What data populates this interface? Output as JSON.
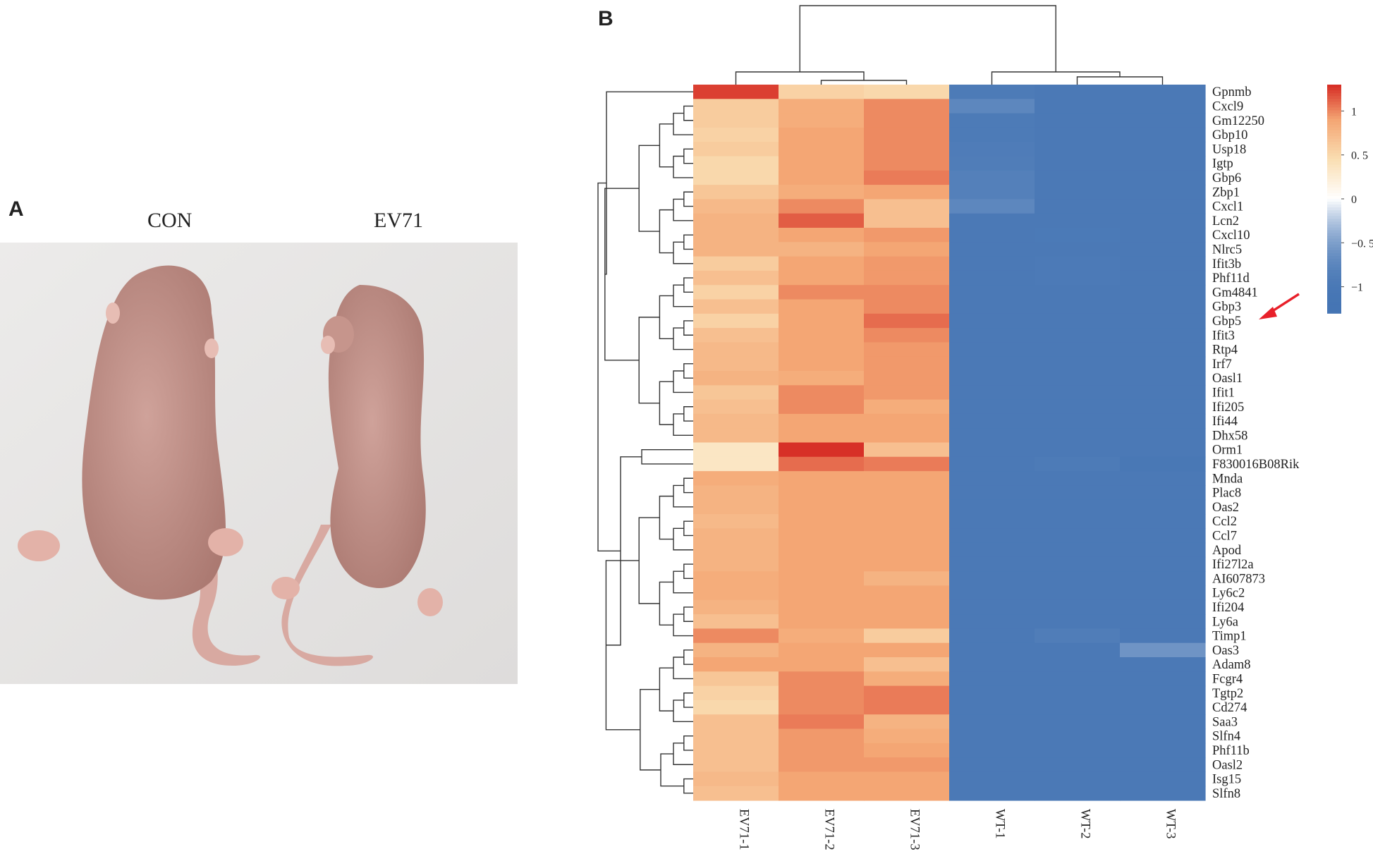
{
  "panels": {
    "a_letter": "A",
    "b_letter": "B"
  },
  "photo": {
    "labels": [
      "CON",
      "EV71"
    ]
  },
  "chart_data": {
    "type": "heatmap",
    "columns": [
      "EV71-1",
      "EV71-2",
      "EV71-3",
      "WT-1",
      "WT-2",
      "WT-3"
    ],
    "rows": [
      "Gpnmb",
      "Cxcl9",
      "Gm12250",
      "Gbp10",
      "Usp18",
      "Igtp",
      "Gbp6",
      "Zbp1",
      "Cxcl1",
      "Lcn2",
      "Cxcl10",
      "Nlrc5",
      "Ifit3b",
      "Phf11d",
      "Gm4841",
      "Gbp3",
      "Gbp5",
      "Ifit3",
      "Rtp4",
      "Irf7",
      "Oasl1",
      "Ifit1",
      "Ifi205",
      "Ifi44",
      "Dhx58",
      "Orm1",
      "F830016B08Rik",
      "Mnda",
      "Plac8",
      "Oas2",
      "Ccl2",
      "Ccl7",
      "Apod",
      "Ifi27l2a",
      "AI607873",
      "Ly6c2",
      "Ifi204",
      "Ly6a",
      "Timp1",
      "Oas3",
      "Adam8",
      "Fcgr4",
      "Tgtp2",
      "Cd274",
      "Saa3",
      "Slfn4",
      "Phf11b",
      "Oasl2",
      "Isg15",
      "Slfn8"
    ],
    "values": [
      [
        1.25,
        0.55,
        0.5,
        -0.95,
        -1.0,
        -1.0
      ],
      [
        0.6,
        0.85,
        1.0,
        -0.75,
        -1.0,
        -1.0
      ],
      [
        0.6,
        0.85,
        1.0,
        -0.95,
        -1.0,
        -1.0
      ],
      [
        0.55,
        0.9,
        1.0,
        -0.95,
        -1.0,
        -1.0
      ],
      [
        0.6,
        0.9,
        1.0,
        -0.92,
        -1.0,
        -1.0
      ],
      [
        0.5,
        0.9,
        1.0,
        -0.9,
        -1.0,
        -1.0
      ],
      [
        0.5,
        0.9,
        1.05,
        -0.85,
        -1.0,
        -1.0
      ],
      [
        0.65,
        0.85,
        0.9,
        -0.85,
        -1.0,
        -1.0
      ],
      [
        0.75,
        1.0,
        0.7,
        -0.75,
        -1.0,
        -1.0
      ],
      [
        0.8,
        1.15,
        0.7,
        -1.0,
        -1.0,
        -1.0
      ],
      [
        0.8,
        0.9,
        0.95,
        -1.0,
        -0.98,
        -1.0
      ],
      [
        0.8,
        0.8,
        0.9,
        -1.0,
        -1.0,
        -1.0
      ],
      [
        0.6,
        0.9,
        0.95,
        -1.0,
        -0.97,
        -1.0
      ],
      [
        0.7,
        0.9,
        0.95,
        -1.0,
        -0.97,
        -1.0
      ],
      [
        0.55,
        1.0,
        1.0,
        -1.0,
        -1.0,
        -1.0
      ],
      [
        0.7,
        0.9,
        1.0,
        -1.0,
        -1.0,
        -1.0
      ],
      [
        0.55,
        0.9,
        1.1,
        -1.0,
        -1.0,
        -1.0
      ],
      [
        0.7,
        0.9,
        1.0,
        -1.0,
        -1.0,
        -1.0
      ],
      [
        0.75,
        0.9,
        0.95,
        -1.0,
        -1.0,
        -1.0
      ],
      [
        0.75,
        0.9,
        0.95,
        -1.0,
        -1.0,
        -1.0
      ],
      [
        0.8,
        0.85,
        0.95,
        -1.0,
        -1.0,
        -1.0
      ],
      [
        0.65,
        1.0,
        0.95,
        -1.0,
        -1.0,
        -1.0
      ],
      [
        0.7,
        1.0,
        0.85,
        -1.0,
        -1.0,
        -1.0
      ],
      [
        0.75,
        0.9,
        0.9,
        -1.0,
        -1.0,
        -1.0
      ],
      [
        0.75,
        0.9,
        0.9,
        -1.0,
        -1.0,
        -1.0
      ],
      [
        0.35,
        1.4,
        0.7,
        -1.0,
        -1.0,
        -1.0
      ],
      [
        0.35,
        1.1,
        1.05,
        -1.0,
        -0.95,
        -1.05
      ],
      [
        0.85,
        0.9,
        0.9,
        -1.0,
        -1.0,
        -1.0
      ],
      [
        0.8,
        0.9,
        0.9,
        -1.0,
        -1.0,
        -1.0
      ],
      [
        0.8,
        0.9,
        0.9,
        -1.0,
        -1.0,
        -1.0
      ],
      [
        0.75,
        0.9,
        0.9,
        -1.0,
        -1.0,
        -1.0
      ],
      [
        0.8,
        0.9,
        0.9,
        -1.0,
        -1.0,
        -1.0
      ],
      [
        0.8,
        0.9,
        0.9,
        -1.0,
        -1.0,
        -1.0
      ],
      [
        0.8,
        0.9,
        0.9,
        -1.0,
        -1.0,
        -1.0
      ],
      [
        0.85,
        0.9,
        0.8,
        -1.0,
        -1.0,
        -1.0
      ],
      [
        0.85,
        0.9,
        0.9,
        -1.0,
        -1.0,
        -1.0
      ],
      [
        0.8,
        0.9,
        0.9,
        -1.0,
        -1.0,
        -1.0
      ],
      [
        0.7,
        0.9,
        0.9,
        -1.0,
        -1.0,
        -1.0
      ],
      [
        1.0,
        0.85,
        0.6,
        -1.0,
        -0.9,
        -1.0
      ],
      [
        0.8,
        0.9,
        0.9,
        -1.0,
        -1.0,
        -0.6
      ],
      [
        0.9,
        0.9,
        0.7,
        -1.0,
        -1.0,
        -1.0
      ],
      [
        0.65,
        1.0,
        0.85,
        -1.0,
        -1.0,
        -1.0
      ],
      [
        0.55,
        1.0,
        1.05,
        -1.0,
        -1.0,
        -1.0
      ],
      [
        0.5,
        1.0,
        1.05,
        -1.0,
        -1.0,
        -1.0
      ],
      [
        0.7,
        1.05,
        0.8,
        -1.0,
        -1.0,
        -1.0
      ],
      [
        0.7,
        0.95,
        0.85,
        -1.0,
        -1.0,
        -1.0
      ],
      [
        0.7,
        0.95,
        0.9,
        -1.0,
        -1.0,
        -1.0
      ],
      [
        0.7,
        0.95,
        0.95,
        -1.0,
        -1.0,
        -1.0
      ],
      [
        0.75,
        0.9,
        0.9,
        -1.0,
        -1.0,
        -1.0
      ],
      [
        0.7,
        0.9,
        0.9,
        -1.0,
        -1.0,
        -1.0
      ]
    ],
    "colorbar": {
      "ticks": [
        {
          "value": 1,
          "label": "1"
        },
        {
          "value": 0.5,
          "label": "0. 5"
        },
        {
          "value": 0,
          "label": "0"
        },
        {
          "value": -0.5,
          "label": "−0. 5"
        },
        {
          "value": -1,
          "label": "−1"
        }
      ],
      "range": [
        -1.3,
        1.3
      ],
      "colors": [
        "#4575b4",
        "#ffffff",
        "#d73027"
      ]
    },
    "highlight": {
      "row": "Gbp5",
      "marker": "red-arrow",
      "color": "#e8202a"
    }
  }
}
